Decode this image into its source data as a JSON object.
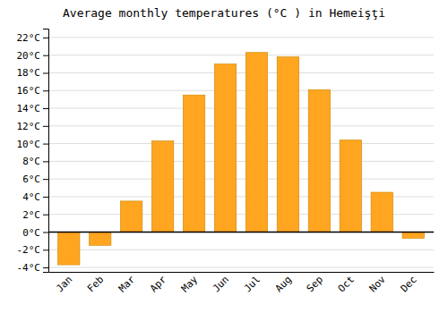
{
  "chart_data": {
    "type": "bar",
    "title": "Average monthly temperatures (°C ) in Hemeişţi",
    "categories": [
      "Jan",
      "Feb",
      "Mar",
      "Apr",
      "May",
      "Jun",
      "Jul",
      "Aug",
      "Sep",
      "Oct",
      "Nov",
      "Dec"
    ],
    "values": [
      -3.7,
      -1.5,
      3.5,
      10.3,
      15.5,
      19.0,
      20.3,
      19.8,
      16.1,
      10.4,
      4.5,
      -0.7
    ],
    "color": "#FFA520",
    "ylim": [
      -4.5,
      23
    ],
    "yticks": [
      {
        "value": -4,
        "label": "-4°C"
      },
      {
        "value": -2,
        "label": "-2°C"
      },
      {
        "value": 0,
        "label": "0°C"
      },
      {
        "value": 2,
        "label": "2°C"
      },
      {
        "value": 4,
        "label": "4°C"
      },
      {
        "value": 6,
        "label": "6°C"
      },
      {
        "value": 8,
        "label": "8°C"
      },
      {
        "value": 10,
        "label": "10°C"
      },
      {
        "value": 12,
        "label": "12°C"
      },
      {
        "value": 14,
        "label": "14°C"
      },
      {
        "value": 16,
        "label": "16°C"
      },
      {
        "value": 18,
        "label": "18°C"
      },
      {
        "value": 20,
        "label": "20°C"
      },
      {
        "value": 22,
        "label": "22°C"
      }
    ],
    "grid": true
  }
}
